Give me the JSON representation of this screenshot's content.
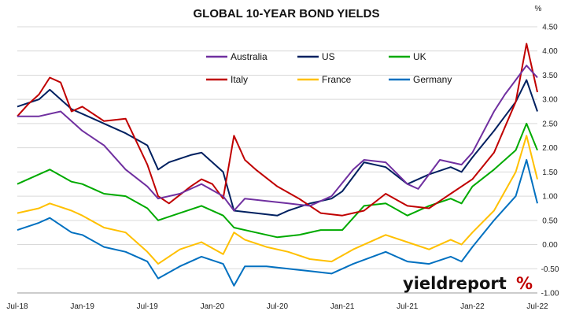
{
  "chart_data": {
    "type": "line",
    "title": "GLOBAL 10-YEAR BOND YIELDS",
    "ylabel": "%",
    "ylim": [
      -1.0,
      4.5
    ],
    "yticks": [
      "4.50",
      "4.00",
      "3.50",
      "3.00",
      "2.50",
      "2.00",
      "1.50",
      "1.00",
      "0.50",
      "0.00",
      "-0.50",
      "-1.00"
    ],
    "xticks": [
      "Jul-18",
      "Jan-19",
      "Jul-19",
      "Jan-20",
      "Jul-20",
      "Jan-21",
      "Jul-21",
      "Jan-22",
      "Jul-22"
    ],
    "xlim": [
      "2018-07",
      "2022-07"
    ],
    "grid": true,
    "legend_position": "top-center",
    "series": [
      {
        "name": "Australia",
        "color": "#7030A0",
        "values": [
          [
            "2018-07",
            2.65
          ],
          [
            "2018-09",
            2.65
          ],
          [
            "2018-11",
            2.75
          ],
          [
            "2019-01",
            2.35
          ],
          [
            "2019-03",
            2.05
          ],
          [
            "2019-05",
            1.55
          ],
          [
            "2019-07",
            1.2
          ],
          [
            "2019-08",
            0.95
          ],
          [
            "2019-10",
            1.05
          ],
          [
            "2019-12",
            1.25
          ],
          [
            "2020-02",
            1.0
          ],
          [
            "2020-03",
            0.7
          ],
          [
            "2020-04",
            0.95
          ],
          [
            "2020-06",
            0.9
          ],
          [
            "2020-08",
            0.85
          ],
          [
            "2020-10",
            0.8
          ],
          [
            "2020-12",
            1.0
          ],
          [
            "2021-02",
            1.55
          ],
          [
            "2021-03",
            1.75
          ],
          [
            "2021-05",
            1.7
          ],
          [
            "2021-07",
            1.25
          ],
          [
            "2021-08",
            1.15
          ],
          [
            "2021-10",
            1.75
          ],
          [
            "2021-12",
            1.65
          ],
          [
            "2022-01",
            1.9
          ],
          [
            "2022-03",
            2.75
          ],
          [
            "2022-04",
            3.1
          ],
          [
            "2022-05",
            3.4
          ],
          [
            "2022-06",
            3.7
          ],
          [
            "2022-07",
            3.45
          ]
        ]
      },
      {
        "name": "US",
        "color": "#002060",
        "values": [
          [
            "2018-07",
            2.85
          ],
          [
            "2018-09",
            3.0
          ],
          [
            "2018-10",
            3.2
          ],
          [
            "2018-12",
            2.8
          ],
          [
            "2019-01",
            2.7
          ],
          [
            "2019-03",
            2.5
          ],
          [
            "2019-05",
            2.3
          ],
          [
            "2019-07",
            2.05
          ],
          [
            "2019-08",
            1.55
          ],
          [
            "2019-09",
            1.7
          ],
          [
            "2019-11",
            1.85
          ],
          [
            "2019-12",
            1.9
          ],
          [
            "2020-02",
            1.5
          ],
          [
            "2020-03",
            0.7
          ],
          [
            "2020-05",
            0.65
          ],
          [
            "2020-07",
            0.6
          ],
          [
            "2020-08",
            0.7
          ],
          [
            "2020-10",
            0.85
          ],
          [
            "2020-12",
            0.95
          ],
          [
            "2021-01",
            1.1
          ],
          [
            "2021-03",
            1.7
          ],
          [
            "2021-05",
            1.6
          ],
          [
            "2021-07",
            1.25
          ],
          [
            "2021-09",
            1.45
          ],
          [
            "2021-11",
            1.6
          ],
          [
            "2021-12",
            1.5
          ],
          [
            "2022-01",
            1.8
          ],
          [
            "2022-03",
            2.35
          ],
          [
            "2022-05",
            2.95
          ],
          [
            "2022-06",
            3.4
          ],
          [
            "2022-07",
            2.75
          ]
        ]
      },
      {
        "name": "UK",
        "color": "#00AA00",
        "values": [
          [
            "2018-07",
            1.25
          ],
          [
            "2018-09",
            1.45
          ],
          [
            "2018-10",
            1.55
          ],
          [
            "2018-12",
            1.3
          ],
          [
            "2019-01",
            1.25
          ],
          [
            "2019-03",
            1.05
          ],
          [
            "2019-05",
            1.0
          ],
          [
            "2019-07",
            0.75
          ],
          [
            "2019-08",
            0.5
          ],
          [
            "2019-10",
            0.65
          ],
          [
            "2019-12",
            0.8
          ],
          [
            "2020-02",
            0.6
          ],
          [
            "2020-03",
            0.35
          ],
          [
            "2020-05",
            0.25
          ],
          [
            "2020-07",
            0.15
          ],
          [
            "2020-09",
            0.2
          ],
          [
            "2020-11",
            0.3
          ],
          [
            "2021-01",
            0.3
          ],
          [
            "2021-03",
            0.8
          ],
          [
            "2021-05",
            0.85
          ],
          [
            "2021-07",
            0.6
          ],
          [
            "2021-09",
            0.8
          ],
          [
            "2021-11",
            0.95
          ],
          [
            "2021-12",
            0.85
          ],
          [
            "2022-01",
            1.2
          ],
          [
            "2022-03",
            1.55
          ],
          [
            "2022-05",
            1.95
          ],
          [
            "2022-06",
            2.5
          ],
          [
            "2022-07",
            1.95
          ]
        ]
      },
      {
        "name": "Italy",
        "color": "#C00000",
        "values": [
          [
            "2018-07",
            2.65
          ],
          [
            "2018-08",
            2.9
          ],
          [
            "2018-09",
            3.1
          ],
          [
            "2018-10",
            3.45
          ],
          [
            "2018-11",
            3.35
          ],
          [
            "2018-12",
            2.75
          ],
          [
            "2019-01",
            2.85
          ],
          [
            "2019-03",
            2.55
          ],
          [
            "2019-05",
            2.6
          ],
          [
            "2019-07",
            1.65
          ],
          [
            "2019-08",
            1.0
          ],
          [
            "2019-09",
            0.85
          ],
          [
            "2019-11",
            1.2
          ],
          [
            "2019-12",
            1.35
          ],
          [
            "2020-01",
            1.25
          ],
          [
            "2020-02",
            0.95
          ],
          [
            "2020-03",
            2.25
          ],
          [
            "2020-04",
            1.75
          ],
          [
            "2020-05",
            1.55
          ],
          [
            "2020-07",
            1.2
          ],
          [
            "2020-09",
            0.95
          ],
          [
            "2020-11",
            0.65
          ],
          [
            "2021-01",
            0.6
          ],
          [
            "2021-03",
            0.7
          ],
          [
            "2021-05",
            1.05
          ],
          [
            "2021-07",
            0.8
          ],
          [
            "2021-09",
            0.75
          ],
          [
            "2021-11",
            1.05
          ],
          [
            "2022-01",
            1.35
          ],
          [
            "2022-03",
            1.9
          ],
          [
            "2022-05",
            2.95
          ],
          [
            "2022-06",
            4.15
          ],
          [
            "2022-07",
            3.15
          ]
        ]
      },
      {
        "name": "France",
        "color": "#FFC000",
        "values": [
          [
            "2018-07",
            0.65
          ],
          [
            "2018-09",
            0.75
          ],
          [
            "2018-10",
            0.85
          ],
          [
            "2018-12",
            0.7
          ],
          [
            "2019-01",
            0.6
          ],
          [
            "2019-03",
            0.35
          ],
          [
            "2019-05",
            0.25
          ],
          [
            "2019-07",
            -0.15
          ],
          [
            "2019-08",
            -0.4
          ],
          [
            "2019-10",
            -0.1
          ],
          [
            "2019-12",
            0.05
          ],
          [
            "2020-02",
            -0.2
          ],
          [
            "2020-03",
            0.25
          ],
          [
            "2020-04",
            0.1
          ],
          [
            "2020-06",
            -0.05
          ],
          [
            "2020-08",
            -0.15
          ],
          [
            "2020-10",
            -0.3
          ],
          [
            "2020-12",
            -0.35
          ],
          [
            "2021-02",
            -0.1
          ],
          [
            "2021-05",
            0.2
          ],
          [
            "2021-07",
            0.05
          ],
          [
            "2021-09",
            -0.1
          ],
          [
            "2021-11",
            0.1
          ],
          [
            "2021-12",
            0.0
          ],
          [
            "2022-01",
            0.25
          ],
          [
            "2022-03",
            0.7
          ],
          [
            "2022-05",
            1.5
          ],
          [
            "2022-06",
            2.25
          ],
          [
            "2022-07",
            1.35
          ]
        ]
      },
      {
        "name": "Germany",
        "color": "#0070C0",
        "values": [
          [
            "2018-07",
            0.3
          ],
          [
            "2018-09",
            0.45
          ],
          [
            "2018-10",
            0.55
          ],
          [
            "2018-12",
            0.25
          ],
          [
            "2019-01",
            0.2
          ],
          [
            "2019-03",
            -0.05
          ],
          [
            "2019-05",
            -0.15
          ],
          [
            "2019-07",
            -0.35
          ],
          [
            "2019-08",
            -0.7
          ],
          [
            "2019-10",
            -0.45
          ],
          [
            "2019-12",
            -0.25
          ],
          [
            "2020-02",
            -0.4
          ],
          [
            "2020-03",
            -0.85
          ],
          [
            "2020-04",
            -0.45
          ],
          [
            "2020-06",
            -0.45
          ],
          [
            "2020-08",
            -0.5
          ],
          [
            "2020-10",
            -0.55
          ],
          [
            "2020-12",
            -0.6
          ],
          [
            "2021-02",
            -0.4
          ],
          [
            "2021-05",
            -0.15
          ],
          [
            "2021-07",
            -0.35
          ],
          [
            "2021-09",
            -0.4
          ],
          [
            "2021-11",
            -0.25
          ],
          [
            "2021-12",
            -0.35
          ],
          [
            "2022-01",
            -0.05
          ],
          [
            "2022-03",
            0.5
          ],
          [
            "2022-05",
            1.0
          ],
          [
            "2022-06",
            1.75
          ],
          [
            "2022-07",
            0.85
          ]
        ]
      }
    ]
  },
  "branding": {
    "text": "yieldreport",
    "glyph": "%"
  }
}
